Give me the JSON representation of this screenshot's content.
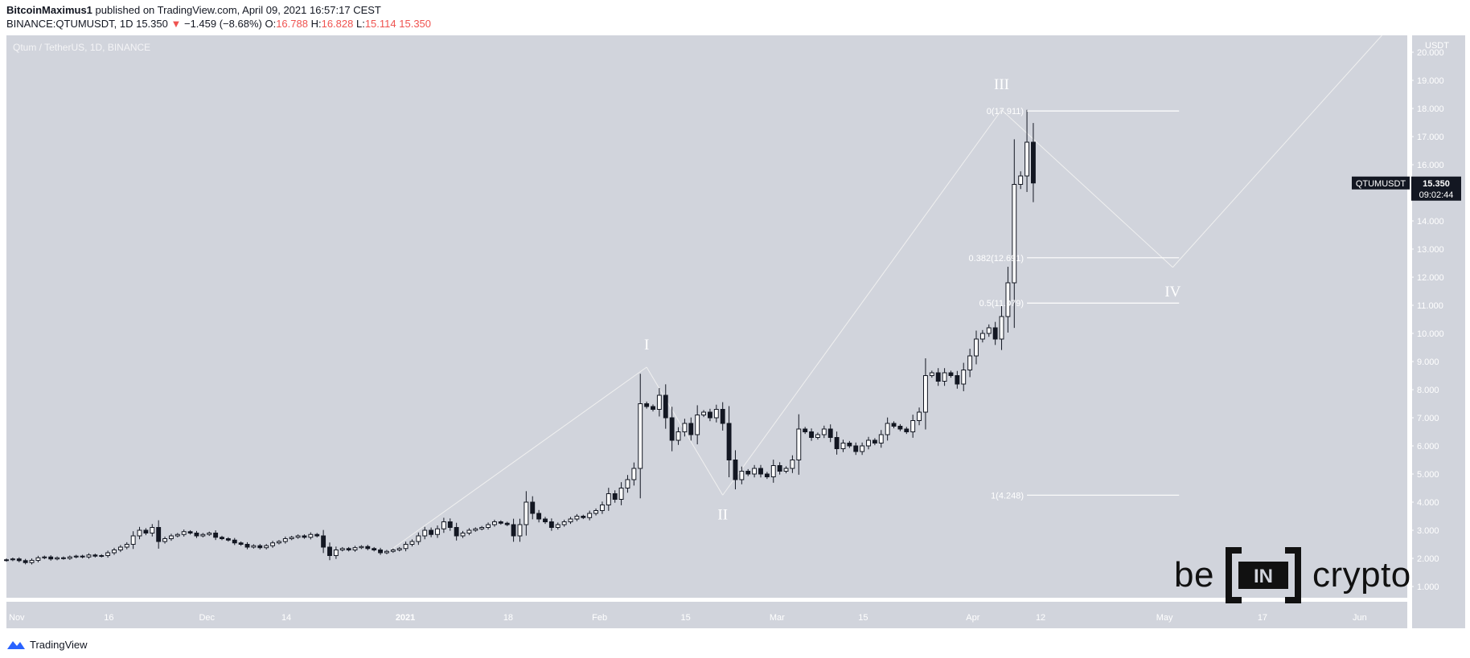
{
  "header": {
    "author": "BitcoinMaximus1",
    "published": "published on TradingView.com, April 09, 2021 16:57:17 CEST",
    "symbol": "BINANCE:QTUMUSDT, 1D",
    "last": "15.350",
    "arrow": "▼",
    "change": "−1.459 (−8.68%)",
    "o_label": "O:",
    "o": "16.788",
    "h_label": "H:",
    "h": "16.828",
    "l_label": "L:",
    "l": "15.114",
    "c_value": "15.350"
  },
  "colors": {
    "chart_bg": "#d1d4dc",
    "axis_bg": "#d1d4dc",
    "candle_up": "#ffffff",
    "candle_down": "#131722",
    "wave_line": "#f0f0f0",
    "accent_red": "#ef5350"
  },
  "footer": {
    "brand": "TradingView",
    "icon": "tradingview-logo-icon"
  },
  "logo": {
    "left": "be",
    "mark": "IN",
    "right": "crypto"
  },
  "chart_data": {
    "type": "candlestick",
    "title": "Qtum / TetherUS, 1D, BINANCE",
    "axis_unit": "USDT",
    "ylim": [
      0.6,
      20.6
    ],
    "yticks": [
      "1.000",
      "2.000",
      "3.000",
      "4.000",
      "5.000",
      "6.000",
      "7.000",
      "8.000",
      "9.000",
      "10.000",
      "11.000",
      "12.000",
      "13.000",
      "14.000",
      "15.000",
      "16.000",
      "17.000",
      "18.000",
      "19.000",
      "20.000"
    ],
    "xlim": [
      "2020-11-01",
      "2021-06-10"
    ],
    "xticks": [
      {
        "date": "2020-11-01",
        "label": "Nov",
        "bold": false
      },
      {
        "date": "2020-11-16",
        "label": "16",
        "bold": false
      },
      {
        "date": "2020-12-01",
        "label": "Dec",
        "bold": false
      },
      {
        "date": "2020-12-14",
        "label": "14",
        "bold": false
      },
      {
        "date": "2021-01-01",
        "label": "2021",
        "bold": true
      },
      {
        "date": "2021-01-18",
        "label": "18",
        "bold": false
      },
      {
        "date": "2021-02-01",
        "label": "Feb",
        "bold": false
      },
      {
        "date": "2021-02-15",
        "label": "15",
        "bold": false
      },
      {
        "date": "2021-03-01",
        "label": "Mar",
        "bold": false
      },
      {
        "date": "2021-03-15",
        "label": "15",
        "bold": false
      },
      {
        "date": "2021-04-01",
        "label": "Apr",
        "bold": false
      },
      {
        "date": "2021-04-12",
        "label": "12",
        "bold": false
      },
      {
        "date": "2021-05-01",
        "label": "May",
        "bold": false
      },
      {
        "date": "2021-05-17",
        "label": "17",
        "bold": false
      },
      {
        "date": "2021-06-01",
        "label": "Jun",
        "bold": false
      }
    ],
    "start_date": "2020-11-01",
    "closes": [
      1.95,
      1.98,
      1.92,
      1.85,
      1.93,
      2.02,
      2.05,
      1.98,
      2.02,
      2.0,
      2.05,
      2.08,
      2.05,
      2.12,
      2.08,
      2.1,
      2.2,
      2.3,
      2.4,
      2.5,
      2.8,
      3.0,
      2.9,
      3.1,
      2.6,
      2.7,
      2.8,
      2.85,
      2.95,
      2.9,
      2.8,
      2.85,
      2.9,
      2.75,
      2.7,
      2.65,
      2.55,
      2.5,
      2.4,
      2.45,
      2.38,
      2.45,
      2.55,
      2.6,
      2.7,
      2.75,
      2.8,
      2.75,
      2.85,
      2.8,
      2.4,
      2.1,
      2.3,
      2.35,
      2.3,
      2.38,
      2.42,
      2.35,
      2.3,
      2.2,
      2.25,
      2.3,
      2.35,
      2.5,
      2.6,
      2.8,
      3.0,
      2.85,
      3.05,
      3.3,
      3.1,
      2.8,
      2.9,
      3.0,
      3.05,
      3.1,
      3.2,
      3.3,
      3.25,
      3.2,
      2.8,
      3.2,
      4.0,
      3.6,
      3.4,
      3.3,
      3.1,
      3.2,
      3.3,
      3.4,
      3.5,
      3.45,
      3.6,
      3.7,
      3.9,
      4.3,
      4.1,
      4.5,
      4.8,
      5.2,
      7.5,
      7.4,
      7.3,
      7.8,
      7.0,
      6.2,
      6.5,
      6.8,
      6.4,
      7.1,
      7.2,
      7.0,
      7.3,
      6.8,
      5.5,
      4.8,
      5.1,
      5.0,
      5.2,
      5.0,
      4.9,
      5.3,
      5.1,
      5.2,
      5.5,
      6.6,
      6.5,
      6.3,
      6.4,
      6.6,
      6.3,
      5.9,
      6.1,
      6.0,
      5.8,
      6.0,
      6.2,
      6.1,
      6.4,
      6.8,
      6.7,
      6.6,
      6.5,
      6.9,
      7.2,
      8.5,
      8.6,
      8.3,
      8.6,
      8.5,
      8.2,
      8.7,
      9.2,
      9.8,
      10.0,
      10.2,
      9.8,
      10.6,
      11.8,
      15.3,
      15.6,
      16.8,
      15.35
    ],
    "peak_open": 15.6,
    "peak_high": 17.95,
    "peak_date": "2021-04-07",
    "waves": [
      {
        "label": "I",
        "x": "2021-02-10",
        "y": 8.8
      },
      {
        "label": "II",
        "x": "2021-02-22",
        "y": 4.25
      },
      {
        "label": "III",
        "x": "2021-04-07",
        "y": 17.95
      },
      {
        "label": "IV",
        "x": "2021-05-04",
        "y": 12.35
      },
      {
        "label": "",
        "x": "2021-06-06",
        "y": 20.6
      }
    ],
    "wave_start": {
      "x": "2020-12-31",
      "y": 2.2
    },
    "fib_levels": [
      {
        "ratio": "0",
        "value": 17.911,
        "label": "0(17.911)"
      },
      {
        "ratio": "0.382",
        "value": 12.691,
        "label": "0.382(12.691)"
      },
      {
        "ratio": "0.5",
        "value": 11.079,
        "label": "0.5(11.079)"
      },
      {
        "ratio": "1",
        "value": 4.248,
        "label": "1(4.248)"
      }
    ],
    "fib_range": [
      "2021-04-11",
      "2021-05-05"
    ],
    "last_price": {
      "symbol": "QTUMUSDT",
      "value": "15.350",
      "countdown": "09:02:44",
      "y": 15.35
    }
  }
}
